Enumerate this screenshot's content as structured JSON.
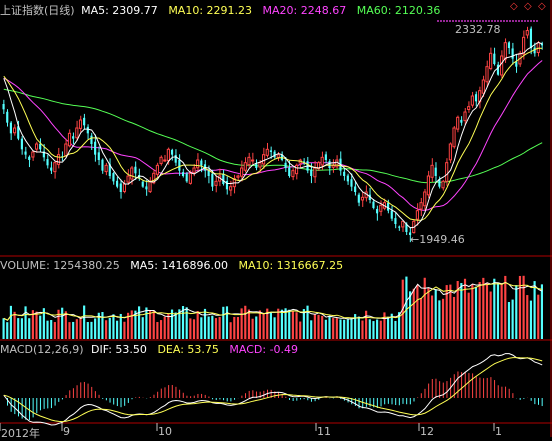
{
  "colors": {
    "background": "#000000",
    "up": "#ff4444",
    "down": "#54ffff",
    "ma5": "#ffffff",
    "ma10": "#ffff55",
    "ma20": "#ff44ff",
    "ma60": "#55ff55",
    "grid": "#b00000",
    "text": "#c0c0c0"
  },
  "price_panel": {
    "title": "上证指数(日线)",
    "ma5_label": "MA5: 2309.77",
    "ma10_label": "MA10: 2291.23",
    "ma20_label": "MA20: 2248.67",
    "ma60_label": "MA60: 2120.36",
    "high_annotation": "2332.78",
    "low_annotation": "←1949.46",
    "tool_icons": [
      "diamond-icon",
      "diamond-icon",
      "diamond-icon"
    ]
  },
  "volume_panel": {
    "volume_label": "VOLUME: 1254380.25",
    "ma5_label": "MA5: 1416896.00",
    "ma10_label": "MA10: 1316667.25"
  },
  "macd_panel": {
    "title": "MACD(12,26,9)",
    "dif_label": "DIF: 53.50",
    "dea_label": "DEA: 53.75",
    "macd_label": "MACD: -0.49"
  },
  "x_axis": {
    "labels": [
      "2012年",
      "9",
      "10",
      "11",
      "12",
      "1"
    ]
  },
  "chart_data": {
    "type": "candlestick",
    "title": "上证指数(日线)",
    "high": 2332.78,
    "low": 1949.46,
    "ma_last": {
      "MA5": 2309.77,
      "MA10": 2291.23,
      "MA20": 2248.67,
      "MA60": 2120.36
    },
    "volume_last": {
      "VOLUME": 1254380.25,
      "MA5": 1416896.0,
      "MA10": 1316667.25
    },
    "macd_last": {
      "DIF": 53.5,
      "DEA": 53.75,
      "MACD": -0.49
    },
    "series_shape": [
      2185,
      2160,
      2140,
      2150,
      2130,
      2110,
      2100,
      2090,
      2105,
      2120,
      2110,
      2095,
      2080,
      2070,
      2085,
      2100,
      2095,
      2120,
      2140,
      2130,
      2150,
      2165,
      2155,
      2140,
      2120,
      2100,
      2090,
      2070,
      2080,
      2060,
      2050,
      2040,
      2030,
      2045,
      2060,
      2075,
      2065,
      2055,
      2040,
      2035,
      2050,
      2065,
      2080,
      2095,
      2090,
      2110,
      2100,
      2085,
      2070,
      2060,
      2050,
      2065,
      2075,
      2090,
      2080,
      2070,
      2060,
      2040,
      2050,
      2060,
      2045,
      2035,
      2040,
      2055,
      2060,
      2075,
      2085,
      2095,
      2090,
      2075,
      2085,
      2100,
      2110,
      2105,
      2095,
      2100,
      2090,
      2075,
      2060,
      2070,
      2080,
      2090,
      2085,
      2070,
      2060,
      2075,
      2085,
      2095,
      2090,
      2075,
      2080,
      2090,
      2070,
      2060,
      2050,
      2040,
      2030,
      2010,
      2020,
      2030,
      2015,
      2000,
      1990,
      2005,
      2010,
      1995,
      1980,
      1970,
      1965,
      1975,
      1955,
      1949.46,
      1975,
      1995,
      2010,
      2030,
      2060,
      2080,
      2060,
      2040,
      2050,
      2085,
      2120,
      2150,
      2170,
      2160,
      2180,
      2190,
      2210,
      2200,
      2220,
      2240,
      2265,
      2290,
      2270,
      2250,
      2285,
      2310,
      2300,
      2280,
      2265,
      2290,
      2320,
      2332.78,
      2300,
      2290,
      2310,
      2305
    ]
  }
}
